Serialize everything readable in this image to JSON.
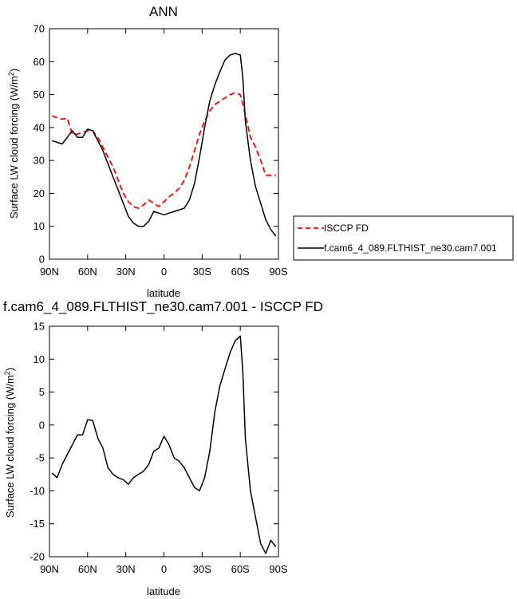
{
  "chart_data": [
    {
      "type": "line",
      "title": "ANN",
      "xlabel": "latitude",
      "ylabel": "Surface LW cloud forcing (W/m",
      "ylabel_sup": "2",
      "ylabel_close": ")",
      "xlim": [
        -90,
        90
      ],
      "ylim": [
        0,
        70
      ],
      "xticks": [
        -90,
        -60,
        -30,
        0,
        30,
        60,
        90
      ],
      "xticklabels": [
        "90N",
        "60N",
        "30N",
        "0",
        "30S",
        "60S",
        "90S"
      ],
      "yticks": [
        0,
        10,
        20,
        30,
        40,
        50,
        60,
        70
      ],
      "yticklabels": [
        "0",
        "10",
        "20",
        "30",
        "40",
        "50",
        "60",
        "70"
      ],
      "grid": false,
      "legend_position": "right",
      "x": [
        -88,
        -84,
        -80,
        -76,
        -72,
        -68,
        -64,
        -60,
        -56,
        -52,
        -48,
        -44,
        -40,
        -36,
        -32,
        -28,
        -24,
        -20,
        -16,
        -12,
        -8,
        -4,
        0,
        4,
        8,
        12,
        16,
        20,
        24,
        28,
        32,
        36,
        40,
        44,
        48,
        52,
        56,
        60,
        62,
        64,
        68,
        72,
        76,
        80,
        84,
        88
      ],
      "series": [
        {
          "name": "ISCCP FD",
          "color": "#ff0000",
          "dash": true,
          "values": [
            43.5,
            43,
            42.5,
            42.8,
            38,
            38,
            38.5,
            39,
            39,
            37,
            34,
            31,
            28,
            24,
            20,
            17.5,
            16,
            15.5,
            16.5,
            18,
            17,
            16,
            17.5,
            19,
            20,
            21.5,
            24,
            28,
            33,
            38,
            42,
            45,
            47,
            48,
            49,
            50,
            50.5,
            50,
            47,
            44,
            37,
            34,
            30,
            25.5,
            25.5,
            25.5
          ]
        },
        {
          "name": "f.cam6_4_089.FLTHIST_ne30.cam7.001",
          "color": "#000000",
          "dash": false,
          "values": [
            36,
            35.5,
            35,
            37,
            39,
            37,
            37,
            39.5,
            39,
            36,
            33,
            29,
            25,
            21,
            17,
            13,
            11,
            10,
            10,
            11.5,
            14.5,
            14,
            13.5,
            14,
            14.5,
            15,
            15.5,
            18,
            23,
            31,
            40,
            48,
            53,
            57,
            60.5,
            62,
            62.5,
            62,
            55,
            42,
            30,
            22,
            17,
            12,
            9,
            7
          ]
        }
      ]
    },
    {
      "type": "line",
      "title": "f.cam6_4_089.FLTHIST_ne30.cam7.001 - ISCCP FD",
      "xlabel": "latitude",
      "ylabel": "Surface LW cloud forcing (W/m",
      "ylabel_sup": "2",
      "ylabel_close": ")",
      "xlim": [
        -90,
        90
      ],
      "ylim": [
        -20,
        15
      ],
      "xticks": [
        -90,
        -60,
        -30,
        0,
        30,
        60,
        90
      ],
      "xticklabels": [
        "90N",
        "60N",
        "30N",
        "0",
        "30S",
        "60S",
        "90S"
      ],
      "yticks": [
        -20,
        -15,
        -10,
        -5,
        0,
        5,
        10,
        15
      ],
      "yticklabels": [
        "-20",
        "-15",
        "-10",
        "-5",
        "0",
        "5",
        "10",
        "15"
      ],
      "grid": false,
      "x": [
        -88,
        -84,
        -80,
        -76,
        -72,
        -68,
        -64,
        -60,
        -56,
        -52,
        -48,
        -44,
        -40,
        -36,
        -32,
        -28,
        -24,
        -20,
        -16,
        -12,
        -8,
        -4,
        0,
        4,
        8,
        12,
        16,
        20,
        24,
        28,
        32,
        36,
        40,
        44,
        48,
        52,
        56,
        60,
        62,
        64,
        68,
        72,
        76,
        80,
        84,
        88
      ],
      "series": [
        {
          "color": "#000000",
          "values": [
            -7.3,
            -8,
            -6,
            -4.5,
            -3,
            -1.5,
            -1.5,
            0.8,
            0.7,
            -2,
            -3.5,
            -6.5,
            -7.5,
            -8,
            -8.3,
            -9,
            -8,
            -7.5,
            -7,
            -6,
            -4,
            -3.5,
            -1.7,
            -3,
            -5,
            -5.5,
            -6.5,
            -8,
            -9.5,
            -10,
            -8,
            -4,
            2,
            6,
            8.5,
            11,
            12.8,
            13.5,
            8,
            -2,
            -10,
            -14,
            -18,
            -19.5,
            -17.5,
            -18.5
          ]
        }
      ]
    }
  ]
}
